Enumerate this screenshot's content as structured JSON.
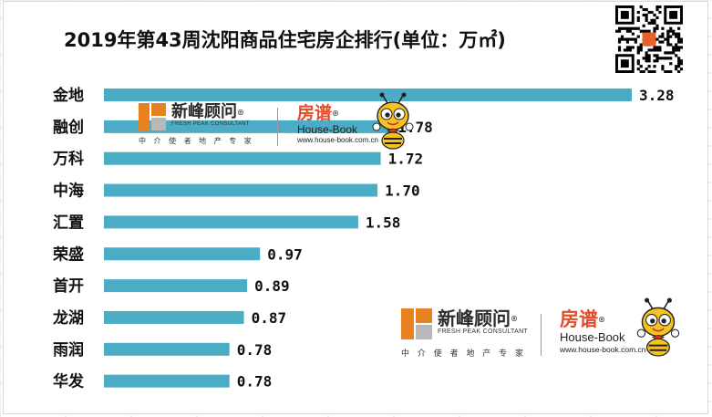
{
  "title": "2019年第43周沈阳商品住宅房企排行(单位：万㎡)",
  "chart_data": {
    "type": "bar",
    "orientation": "horizontal",
    "title": "2019年第43周沈阳商品住宅房企排行(单位：万㎡)",
    "categories": [
      "金地",
      "融创",
      "万科",
      "中海",
      "汇置",
      "荣盛",
      "首开",
      "龙湖",
      "雨润",
      "华发"
    ],
    "values": [
      3.28,
      1.78,
      1.72,
      1.7,
      1.58,
      0.97,
      0.89,
      0.87,
      0.78,
      0.78
    ],
    "value_labels": [
      "3.28",
      "1.78",
      "1.72",
      "1.70",
      "1.58",
      "0.97",
      "0.89",
      "0.87",
      "0.78",
      "0.78"
    ],
    "xlim": [
      0,
      3.28
    ],
    "grid": false,
    "legend": "none",
    "xlabel": "",
    "ylabel": "",
    "bar_color": "#4bacc6"
  },
  "watermark": {
    "xinfeng_cn": "新峰顾问",
    "xinfeng_en": "FRESH PEAK CONSULTANT",
    "xinfeng_tag": "中 介 使 者  地 产 专 家",
    "fangpu_cn": "房谱",
    "fangpu_en": "House-Book",
    "fangpu_url": "www.house-book.com.cn",
    "registered_mark": "®"
  },
  "colors": {
    "bar": "#4bacc6",
    "brand_orange": "#ea8120",
    "brand_red": "#e34b2b",
    "grid_line": "#e2e2e2"
  },
  "icons": [
    "qr-code-icon",
    "bee-mascot-icon",
    "xinfeng-logo-icon"
  ]
}
